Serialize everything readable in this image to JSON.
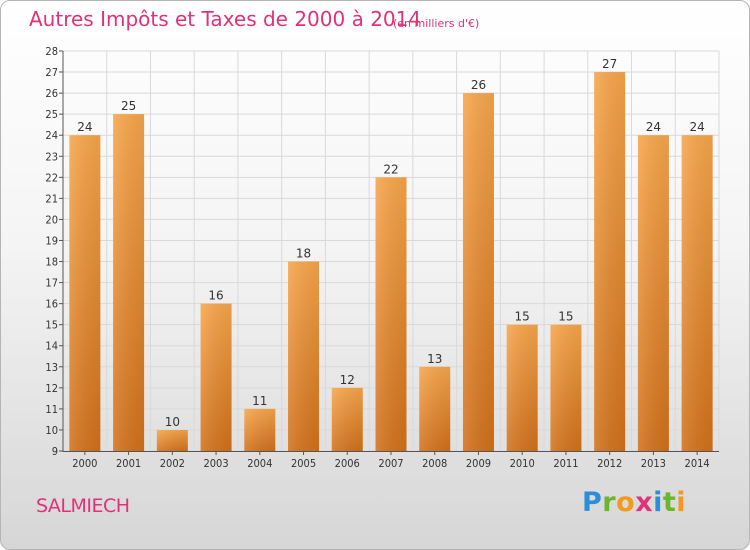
{
  "header": {
    "title": "Autres Impôts et Taxes de 2000 à 2014",
    "subtitle": "(en milliers d'€)"
  },
  "footer": {
    "town": "SALMIECH",
    "logo_letters": [
      "P",
      "r",
      "o",
      "x",
      "i",
      "t",
      "i"
    ]
  },
  "chart_data": {
    "type": "bar",
    "title": "Autres Impôts et Taxes de 2000 à 2014",
    "subtitle": "(en milliers d'€)",
    "categories": [
      "2000",
      "2001",
      "2002",
      "2003",
      "2004",
      "2005",
      "2006",
      "2007",
      "2008",
      "2009",
      "2010",
      "2011",
      "2012",
      "2013",
      "2014"
    ],
    "values": [
      24,
      25,
      10,
      16,
      11,
      18,
      12,
      22,
      13,
      26,
      15,
      15,
      27,
      24,
      24
    ],
    "xlabel": "",
    "ylabel": "",
    "ylim": [
      9,
      28
    ],
    "yticks": [
      9,
      10,
      11,
      12,
      13,
      14,
      15,
      16,
      17,
      18,
      19,
      20,
      21,
      22,
      23,
      24,
      25,
      26,
      27,
      28
    ],
    "grid": true,
    "legend": "none",
    "colors": {
      "bar_top": "#f7a64b",
      "bar_bottom": "#d2711b",
      "grid": "#d9d9d9",
      "text": "#e0327a"
    }
  }
}
